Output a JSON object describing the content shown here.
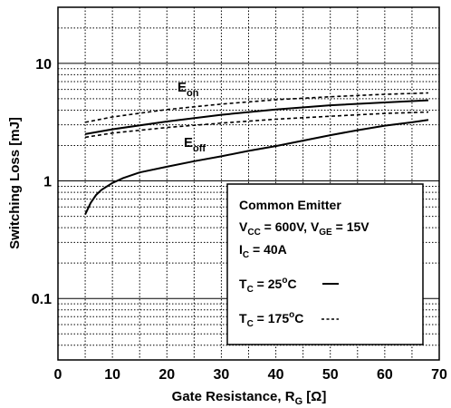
{
  "chart_data": {
    "type": "line",
    "xlabel": "Gate Resistance, R",
    "xlabel_sub": "G",
    "xlabel_unit": " [Ω]",
    "ylabel": "Switching Loss [mJ]",
    "xlim": [
      0,
      70
    ],
    "ylim": [
      0.03,
      30
    ],
    "yscale": "log",
    "grid": true,
    "xticks": [
      "0",
      "10",
      "20",
      "30",
      "40",
      "50",
      "60",
      "70"
    ],
    "yticks": [
      {
        "value": 10,
        "label": "10"
      },
      {
        "value": 1,
        "label": "1"
      },
      {
        "value": 0.1,
        "label": "0.1"
      }
    ],
    "annotations": {
      "eon": {
        "main": "E",
        "sub": "on"
      },
      "eoff": {
        "main": "E",
        "sub": "off"
      }
    },
    "legend": {
      "placement": "bottom-right",
      "line1": "Common Emitter",
      "line2_a": "V",
      "line2_a_sub": "CC",
      "line2_b": " = 600V, V",
      "line2_b_sub": "GE",
      "line2_c": " = 15V",
      "line3_a": "I",
      "line3_a_sub": "C",
      "line3_b": " = 40A",
      "line4_a": "T",
      "line4_a_sub": "C",
      "line4_b": " = 25",
      "line4_sup": "o",
      "line4_c": "C",
      "line5_a": "T",
      "line5_a_sub": "C",
      "line5_b": " = 175",
      "line5_sup": "o",
      "line5_c": "C"
    },
    "series": [
      {
        "id": "eon-25",
        "style": "solid",
        "x": [
          5,
          10,
          20,
          30,
          40,
          50,
          60,
          68
        ],
        "y": [
          2.5,
          2.75,
          3.2,
          3.65,
          4.05,
          4.4,
          4.65,
          4.85
        ]
      },
      {
        "id": "eon-175",
        "style": "dashed",
        "x": [
          5,
          10,
          20,
          30,
          40,
          50,
          60,
          68
        ],
        "y": [
          3.15,
          3.5,
          4.05,
          4.5,
          4.9,
          5.2,
          5.45,
          5.6
        ]
      },
      {
        "id": "eoff-175",
        "style": "dashed",
        "x": [
          5,
          10,
          20,
          30,
          40,
          50,
          60,
          68
        ],
        "y": [
          2.35,
          2.55,
          2.85,
          3.1,
          3.35,
          3.55,
          3.75,
          3.85
        ]
      },
      {
        "id": "eoff-25",
        "style": "solid",
        "x": [
          5,
          6,
          7,
          8,
          10,
          12,
          15,
          20,
          25,
          30,
          35,
          40,
          45,
          50,
          55,
          60,
          65,
          68
        ],
        "y": [
          0.52,
          0.65,
          0.76,
          0.84,
          0.96,
          1.06,
          1.18,
          1.32,
          1.47,
          1.62,
          1.8,
          1.98,
          2.2,
          2.45,
          2.7,
          2.95,
          3.15,
          3.3
        ]
      }
    ]
  }
}
